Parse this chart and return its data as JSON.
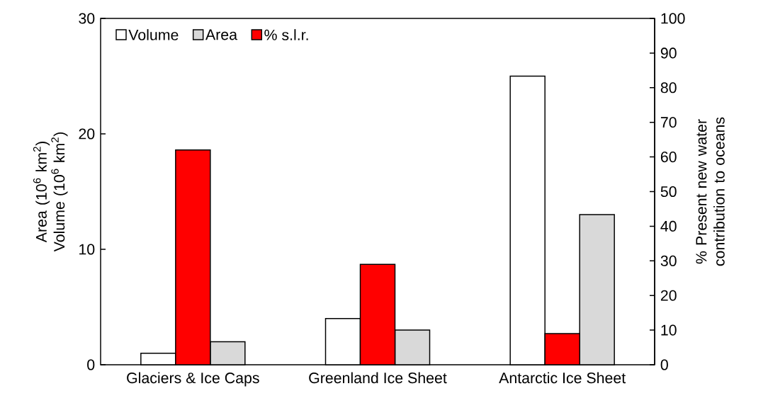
{
  "chart_data": {
    "type": "bar",
    "categories": [
      "Glaciers & Ice Caps",
      "Greenland Ice Sheet",
      "Antarctic Ice Sheet"
    ],
    "ylabel": "Area (10$^{6}$ km$^{2}$) Volume (10$^{6}$ km$^{2}$)",
    "y2label": "% Present new water contribution to oceans",
    "series": [
      {
        "name": "Volume",
        "color": "#ffffff",
        "values": [
          1,
          4,
          25
        ]
      },
      {
        "name": "% s.l.r.",
        "color": "#ff0000",
        "values": [
          62,
          29,
          9
        ],
        "axis": "y2"
      },
      {
        "name": "Area",
        "color": "#d9d9d9",
        "values": [
          2,
          3,
          13
        ]
      }
    ],
    "ylim": [
      0,
      30
    ],
    "yticks": [
      0,
      10,
      20,
      30
    ],
    "y2lim": [
      0,
      100
    ],
    "y2ticks": [
      0,
      10,
      20,
      30,
      40,
      50,
      60,
      70,
      80,
      90,
      100
    ],
    "grid": false,
    "legend": "top left"
  }
}
